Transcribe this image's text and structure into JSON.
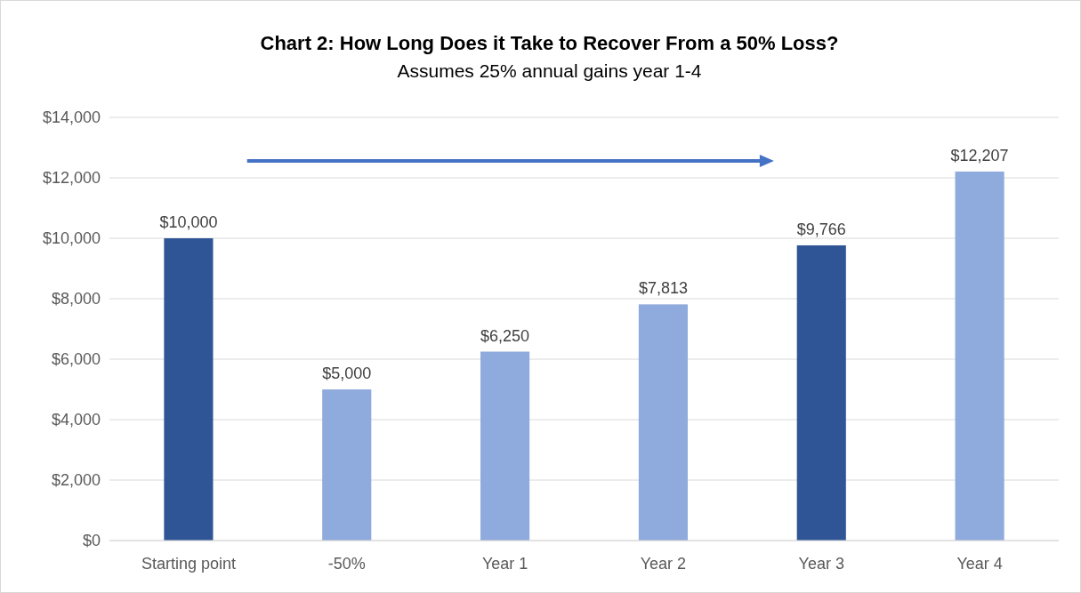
{
  "chart_data": {
    "type": "bar",
    "title": "Chart 2: How Long Does it Take to Recover From a 50% Loss?",
    "subtitle": "Assumes 25% annual gains year 1-4",
    "categories": [
      "Starting point",
      "-50%",
      "Year 1",
      "Year 2",
      "Year 3",
      "Year 4"
    ],
    "values": [
      10000,
      5000,
      6250,
      7813,
      9766,
      12207
    ],
    "colors": [
      "#2f5597",
      "#8faadc",
      "#8faadc",
      "#8faadc",
      "#2f5597",
      "#8faadc"
    ],
    "value_labels": [
      "$10,000",
      "$5,000",
      "$6,250",
      "$7,813",
      "$9,766",
      "$12,207"
    ],
    "ylim": [
      0,
      14000
    ],
    "yticks": [
      {
        "value": 0,
        "label": "$0"
      },
      {
        "value": 2000,
        "label": "$2,000"
      },
      {
        "value": 4000,
        "label": "$4,000"
      },
      {
        "value": 6000,
        "label": "$6,000"
      },
      {
        "value": 8000,
        "label": "$8,000"
      },
      {
        "value": 10000,
        "label": "$10,000"
      },
      {
        "value": 12000,
        "label": "$12,000"
      },
      {
        "value": 14000,
        "label": "$14,000"
      }
    ],
    "grid": "y"
  }
}
